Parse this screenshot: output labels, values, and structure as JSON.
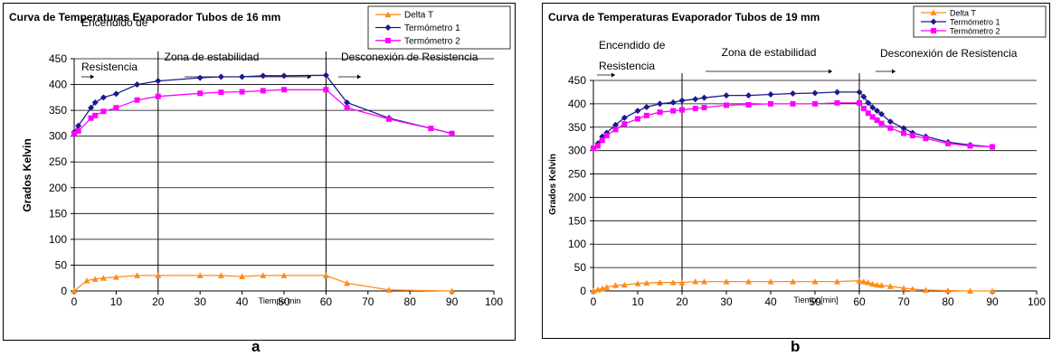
{
  "subfigure_labels": [
    "a",
    "b"
  ],
  "chart_data": [
    {
      "type": "line",
      "title": "Curva de Temperaturas Evaporador Tubos de 16 mm",
      "xlabel": "Tiempo min",
      "ylabel": "Grados Kelvin",
      "xlim": [
        0,
        100
      ],
      "ylim": [
        0,
        450
      ],
      "xticks": [
        0,
        10,
        20,
        30,
        40,
        50,
        60,
        70,
        80,
        90,
        100
      ],
      "yticks": [
        0,
        50,
        100,
        150,
        200,
        250,
        300,
        350,
        400,
        450
      ],
      "grid": "horizontal",
      "legend_position": "top-right",
      "vlines": [
        20,
        60
      ],
      "annotations": [
        "Encendido de Resistencia",
        "Zona de estabilidad",
        "Desconexión de Resistencia"
      ],
      "series": [
        {
          "name": "Delta T",
          "color": "#ff8c1a",
          "marker": "triangle",
          "x": [
            0,
            3,
            5,
            7,
            10,
            15,
            20,
            30,
            35,
            40,
            45,
            50,
            60,
            65,
            75,
            90
          ],
          "y": [
            0,
            20,
            23,
            25,
            27,
            30,
            30,
            30,
            30,
            28,
            30,
            30,
            30,
            15,
            2,
            0
          ]
        },
        {
          "name": "Termómetro 1",
          "color": "#1a1a8c",
          "marker": "diamond",
          "x": [
            0,
            1,
            4,
            5,
            7,
            10,
            15,
            20,
            30,
            35,
            40,
            45,
            50,
            60,
            65,
            75,
            90
          ],
          "y": [
            308,
            320,
            355,
            365,
            375,
            382,
            400,
            407,
            413,
            415,
            415,
            417,
            417,
            418,
            365,
            335,
            305
          ]
        },
        {
          "name": "Termómetro 2",
          "color": "#ff00ff",
          "marker": "square",
          "x": [
            0,
            1,
            4,
            5,
            7,
            10,
            15,
            20,
            30,
            35,
            40,
            45,
            50,
            60,
            65,
            75,
            85,
            90
          ],
          "y": [
            305,
            310,
            335,
            340,
            348,
            355,
            370,
            377,
            383,
            385,
            386,
            388,
            390,
            390,
            355,
            333,
            315,
            305
          ]
        }
      ]
    },
    {
      "type": "line",
      "title": "Curva de Temperaturas Evaporador Tubos de 19 mm",
      "xlabel": "Tiempo[min]",
      "ylabel": "Grados Kelvin",
      "xlim": [
        0,
        100
      ],
      "ylim": [
        0,
        450
      ],
      "xticks": [
        0,
        10,
        20,
        30,
        40,
        50,
        60,
        70,
        80,
        90,
        100
      ],
      "yticks": [
        0,
        50,
        100,
        150,
        200,
        250,
        300,
        350,
        400,
        450
      ],
      "grid": "horizontal",
      "legend_position": "top-right",
      "vlines": [
        20,
        60
      ],
      "annotations": [
        "Encendido de Resistencia",
        "Zona de estabilidad",
        "Desconexión de Resistencia"
      ],
      "series": [
        {
          "name": "Delta T",
          "color": "#ff8c1a",
          "marker": "triangle",
          "x": [
            0,
            1,
            2,
            3,
            5,
            7,
            10,
            12,
            15,
            18,
            20,
            23,
            25,
            30,
            35,
            40,
            45,
            50,
            55,
            60,
            61,
            62,
            63,
            64,
            65,
            67,
            70,
            72,
            75,
            80,
            85,
            90
          ],
          "y": [
            0,
            3,
            5,
            8,
            12,
            13,
            16,
            17,
            18,
            18,
            18,
            20,
            20,
            20,
            20,
            20,
            20,
            20,
            20,
            22,
            20,
            18,
            15,
            13,
            12,
            10,
            6,
            4,
            2,
            1,
            0,
            0
          ]
        },
        {
          "name": "Termómetro 1",
          "color": "#1a1a8c",
          "marker": "diamond",
          "x": [
            0,
            1,
            2,
            3,
            5,
            7,
            10,
            12,
            15,
            18,
            20,
            23,
            25,
            30,
            35,
            40,
            45,
            50,
            55,
            60,
            61,
            62,
            63,
            64,
            65,
            67,
            70,
            72,
            75,
            80,
            85,
            90
          ],
          "y": [
            305,
            315,
            330,
            338,
            355,
            370,
            385,
            393,
            400,
            403,
            407,
            410,
            413,
            418,
            418,
            420,
            422,
            423,
            425,
            425,
            415,
            402,
            392,
            385,
            378,
            362,
            348,
            338,
            330,
            318,
            312,
            308
          ]
        },
        {
          "name": "Termómetro 2",
          "color": "#ff00ff",
          "marker": "square",
          "x": [
            0,
            1,
            2,
            3,
            5,
            7,
            10,
            12,
            15,
            18,
            20,
            23,
            25,
            30,
            35,
            40,
            45,
            50,
            55,
            60,
            61,
            62,
            63,
            64,
            65,
            67,
            70,
            72,
            75,
            80,
            85,
            90
          ],
          "y": [
            305,
            310,
            322,
            332,
            345,
            357,
            368,
            375,
            382,
            385,
            387,
            390,
            392,
            397,
            398,
            400,
            400,
            400,
            402,
            402,
            390,
            380,
            372,
            365,
            358,
            348,
            337,
            332,
            326,
            315,
            310,
            308
          ]
        }
      ]
    }
  ]
}
